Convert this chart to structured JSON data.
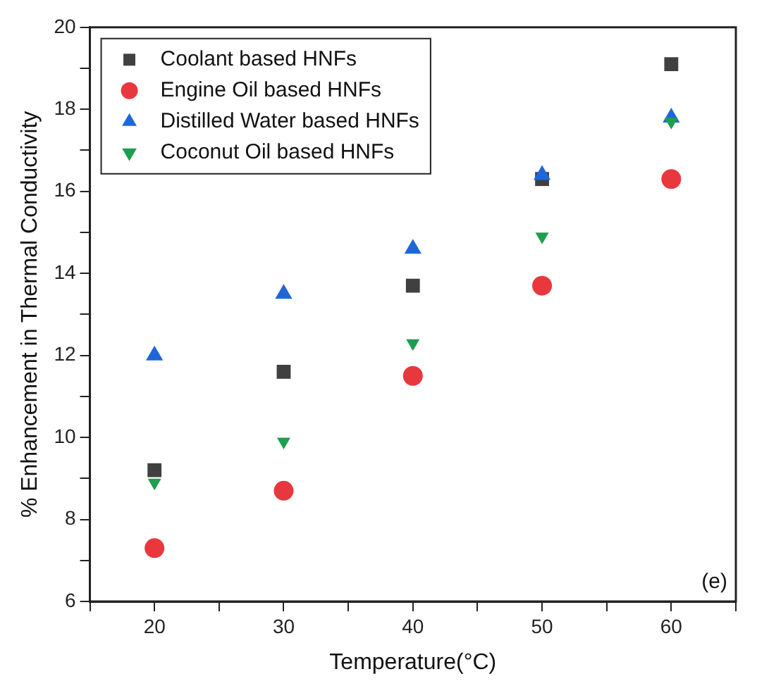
{
  "chart_data": {
    "type": "scatter",
    "xlabel": "Temperature(°C)",
    "ylabel": "% Enhancement in Thermal Conductivity",
    "x": [
      20,
      30,
      40,
      50,
      60
    ],
    "series": [
      {
        "name": "Coolant based HNFs",
        "color": "#404040",
        "marker": "square",
        "values": [
          9.2,
          11.6,
          13.7,
          16.3,
          19.1
        ]
      },
      {
        "name": "Engine Oil based HNFs",
        "color": "#e8383d",
        "marker": "circle",
        "values": [
          7.3,
          8.7,
          11.5,
          13.7,
          16.3
        ]
      },
      {
        "name": "Distilled Water based HNFs",
        "color": "#1f67d6",
        "marker": "triangle",
        "values": [
          12.0,
          13.5,
          14.6,
          16.4,
          17.8
        ]
      },
      {
        "name": "Coconut Oil based HNFs",
        "color": "#1e9e4f",
        "marker": "triangle-down",
        "values": [
          8.9,
          9.9,
          12.3,
          14.9,
          17.7
        ]
      }
    ],
    "xlim": [
      15,
      65
    ],
    "xticks": [
      {
        "value": 15,
        "label": null
      },
      20,
      {
        "value": 25,
        "label": null
      },
      30,
      {
        "value": 35,
        "label": null
      },
      40,
      {
        "value": 45,
        "label": null
      },
      50,
      {
        "value": 55,
        "label": null
      },
      60,
      {
        "value": 65,
        "label": null
      }
    ],
    "ylim": [
      6,
      20
    ],
    "yticks": [
      6,
      {
        "value": 7,
        "label": null
      },
      8,
      {
        "value": 9,
        "label": null
      },
      10,
      {
        "value": 11,
        "label": null
      },
      12,
      {
        "value": 13,
        "label": null
      },
      14,
      {
        "value": 15,
        "label": null
      },
      16,
      {
        "value": 17,
        "label": null
      },
      18,
      {
        "value": 19,
        "label": null
      },
      20
    ],
    "grid": false,
    "legend": "top left",
    "annotations": [
      "(e)"
    ]
  }
}
